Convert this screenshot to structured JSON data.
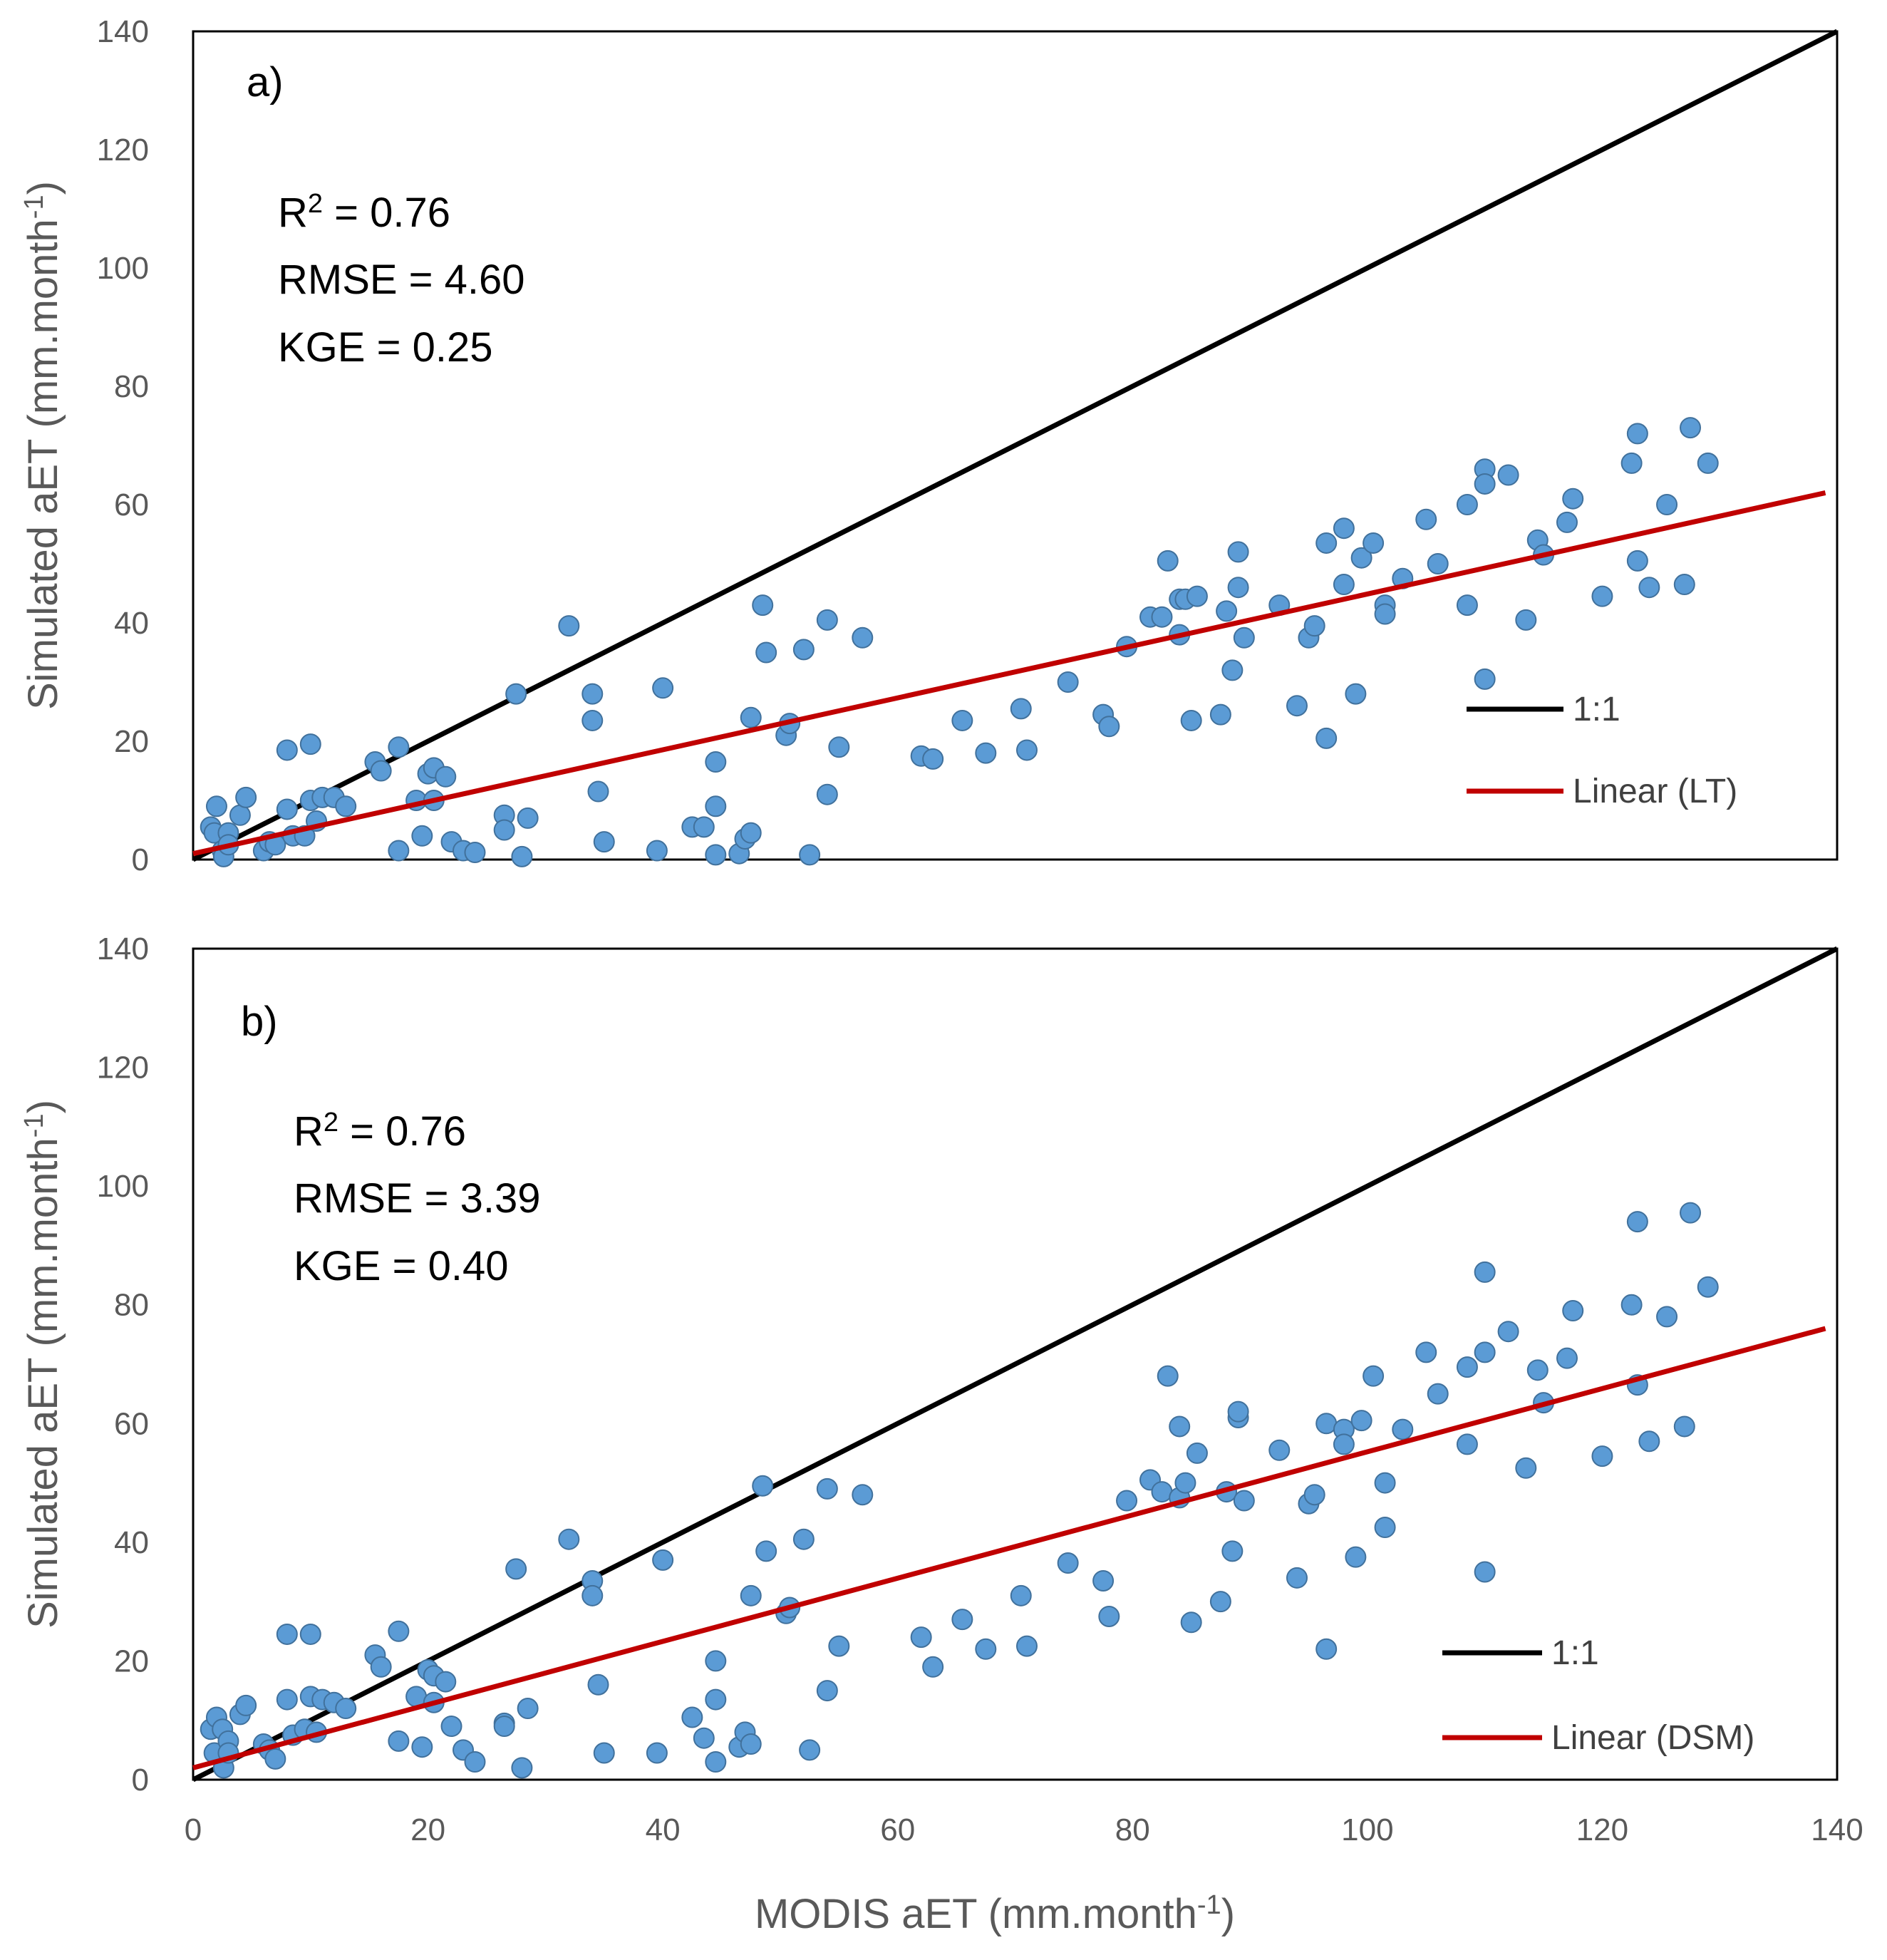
{
  "colors": {
    "point_fill": "#5B9BD5",
    "point_stroke": "#41719C",
    "one_to_one": "#000000",
    "trend": "#C00000",
    "tick_text": "#595959",
    "frame": "#000000"
  },
  "x_axis": {
    "label_main": "MODIS aET (mm.month",
    "label_sup": "-1",
    "label_end": ")",
    "ticks": [
      "0",
      "20",
      "40",
      "60",
      "80",
      "100",
      "120",
      "140"
    ]
  },
  "chart_data": [
    {
      "type": "scatter",
      "panel_label": "a)",
      "stats": {
        "r2_prefix": "R",
        "r2_sup": "2",
        "r2_value": " = 0.76",
        "rmse": "RMSE = 4.60",
        "kge": "KGE = 0.25"
      },
      "xlabel": "MODIS aET (mm.month-1)",
      "ylabel_main": "Simulated aET (mm.month",
      "ylabel_sup": "-1",
      "ylabel_end": ")",
      "xlim": [
        0,
        140
      ],
      "ylim": [
        0,
        140
      ],
      "y_ticks": [
        "0",
        "20",
        "40",
        "60",
        "80",
        "100",
        "120",
        "140"
      ],
      "legend": [
        {
          "label": "1:1",
          "kind": "one_to_one"
        },
        {
          "label": "Linear (LT)",
          "kind": "trend"
        }
      ],
      "one_to_one": {
        "x": [
          0,
          140
        ],
        "y": [
          0,
          140
        ]
      },
      "trend": {
        "x": [
          0,
          139
        ],
        "y": [
          1,
          62
        ]
      },
      "points": [
        [
          1.5,
          5.5
        ],
        [
          1.8,
          4.5
        ],
        [
          2,
          9
        ],
        [
          2.5,
          1.5
        ],
        [
          2.6,
          0.5
        ],
        [
          3,
          4.5
        ],
        [
          3,
          2.5
        ],
        [
          4,
          7.5
        ],
        [
          4.5,
          10.5
        ],
        [
          6,
          1.5
        ],
        [
          6.5,
          3
        ],
        [
          7,
          2.5
        ],
        [
          8,
          18.5
        ],
        [
          8,
          8.5
        ],
        [
          8.5,
          4
        ],
        [
          9.5,
          4
        ],
        [
          10,
          10
        ],
        [
          10,
          19.5
        ],
        [
          10.5,
          6.5
        ],
        [
          11,
          10.5
        ],
        [
          12,
          10.5
        ],
        [
          13,
          9
        ],
        [
          15.5,
          16.5
        ],
        [
          16,
          15
        ],
        [
          17.5,
          19
        ],
        [
          17.5,
          1.5
        ],
        [
          19,
          10
        ],
        [
          19.5,
          4
        ],
        [
          20,
          14.5
        ],
        [
          20.5,
          15.5
        ],
        [
          20.5,
          10
        ],
        [
          21.5,
          14
        ],
        [
          22,
          3
        ],
        [
          23,
          1.5
        ],
        [
          24,
          1.2
        ],
        [
          26.5,
          7.5
        ],
        [
          26.5,
          5
        ],
        [
          27.5,
          28
        ],
        [
          28,
          0.5
        ],
        [
          28.5,
          7
        ],
        [
          32,
          39.5
        ],
        [
          34,
          28
        ],
        [
          34,
          23.5
        ],
        [
          34.5,
          11.5
        ],
        [
          35,
          3
        ],
        [
          39.5,
          1.5
        ],
        [
          40,
          29
        ],
        [
          42.5,
          5.5
        ],
        [
          43.5,
          5.5
        ],
        [
          44.5,
          9
        ],
        [
          44.5,
          16.5
        ],
        [
          44.5,
          0.8
        ],
        [
          46.5,
          1
        ],
        [
          47,
          3.5
        ],
        [
          47.5,
          4.5
        ],
        [
          47.5,
          24
        ],
        [
          48.5,
          43
        ],
        [
          48.8,
          35
        ],
        [
          50.5,
          21
        ],
        [
          50.8,
          23
        ],
        [
          52,
          35.5
        ],
        [
          52.5,
          0.8
        ],
        [
          54,
          40.5
        ],
        [
          54,
          11
        ],
        [
          55,
          19
        ],
        [
          57,
          37.5
        ],
        [
          62,
          17.5
        ],
        [
          63,
          17
        ],
        [
          65.5,
          23.5
        ],
        [
          67.5,
          18
        ],
        [
          70.5,
          25.5
        ],
        [
          71,
          18.5
        ],
        [
          74.5,
          30
        ],
        [
          77.5,
          24.5
        ],
        [
          78,
          22.5
        ],
        [
          79.5,
          36
        ],
        [
          81.5,
          41
        ],
        [
          82.5,
          41
        ],
        [
          83,
          50.5
        ],
        [
          84,
          44
        ],
        [
          84,
          38
        ],
        [
          84.5,
          44
        ],
        [
          85,
          23.5
        ],
        [
          85.5,
          44.5
        ],
        [
          87.5,
          24.5
        ],
        [
          88,
          42
        ],
        [
          88.5,
          32
        ],
        [
          89,
          46
        ],
        [
          89,
          52
        ],
        [
          89.5,
          37.5
        ],
        [
          92.5,
          43
        ],
        [
          94,
          26
        ],
        [
          95,
          37.5
        ],
        [
          95.5,
          39.5
        ],
        [
          96.5,
          53.5
        ],
        [
          96.5,
          20.5
        ],
        [
          98,
          56
        ],
        [
          98,
          46.5
        ],
        [
          99,
          28
        ],
        [
          99.5,
          51
        ],
        [
          100.5,
          53.5
        ],
        [
          101.5,
          43
        ],
        [
          101.5,
          41.5
        ],
        [
          103,
          47.5
        ],
        [
          105,
          57.5
        ],
        [
          106,
          50
        ],
        [
          108.5,
          60
        ],
        [
          108.5,
          43
        ],
        [
          110,
          66
        ],
        [
          110,
          63.5
        ],
        [
          110,
          30.5
        ],
        [
          112,
          65
        ],
        [
          113.5,
          40.5
        ],
        [
          114.5,
          54
        ],
        [
          115,
          51.5
        ],
        [
          117,
          57
        ],
        [
          117.5,
          61
        ],
        [
          120,
          44.5
        ],
        [
          122.5,
          67
        ],
        [
          123,
          72
        ],
        [
          123,
          50.5
        ],
        [
          124,
          46
        ],
        [
          125.5,
          60
        ],
        [
          127,
          46.5
        ],
        [
          127.5,
          73
        ],
        [
          129,
          67
        ]
      ]
    },
    {
      "type": "scatter",
      "panel_label": "b)",
      "stats": {
        "r2_prefix": "R",
        "r2_sup": "2",
        "r2_value": " = 0.76",
        "rmse": "RMSE = 3.39",
        "kge": "KGE = 0.40"
      },
      "xlabel": "MODIS aET (mm.month-1)",
      "ylabel_main": "Simulated aET (mm.month",
      "ylabel_sup": "-1",
      "ylabel_end": ")",
      "xlim": [
        0,
        140
      ],
      "ylim": [
        0,
        140
      ],
      "y_ticks": [
        "0",
        "20",
        "40",
        "60",
        "80",
        "100",
        "120",
        "140"
      ],
      "legend": [
        {
          "label": "1:1",
          "kind": "one_to_one"
        },
        {
          "label": "Linear (DSM)",
          "kind": "trend"
        }
      ],
      "one_to_one": {
        "x": [
          0,
          140
        ],
        "y": [
          0,
          140
        ]
      },
      "trend": {
        "x": [
          0,
          139
        ],
        "y": [
          2,
          76
        ]
      },
      "points": [
        [
          1.5,
          8.5
        ],
        [
          1.8,
          4.5
        ],
        [
          2,
          10.5
        ],
        [
          2.5,
          8.5
        ],
        [
          2.6,
          2
        ],
        [
          3,
          6.5
        ],
        [
          3,
          4.5
        ],
        [
          4,
          11
        ],
        [
          4.5,
          12.5
        ],
        [
          6,
          6
        ],
        [
          6.5,
          5
        ],
        [
          7,
          3.5
        ],
        [
          8,
          24.5
        ],
        [
          8,
          13.5
        ],
        [
          8.5,
          7.5
        ],
        [
          9.5,
          8.5
        ],
        [
          10,
          14
        ],
        [
          10,
          24.5
        ],
        [
          10.5,
          8
        ],
        [
          11,
          13.5
        ],
        [
          12,
          13
        ],
        [
          13,
          12
        ],
        [
          15.5,
          21
        ],
        [
          16,
          19
        ],
        [
          17.5,
          25
        ],
        [
          17.5,
          6.5
        ],
        [
          19,
          14
        ],
        [
          19.5,
          5.5
        ],
        [
          20,
          18.5
        ],
        [
          20.5,
          17.5
        ],
        [
          20.5,
          13
        ],
        [
          21.5,
          16.5
        ],
        [
          22,
          9
        ],
        [
          23,
          5
        ],
        [
          24,
          3
        ],
        [
          26.5,
          9.5
        ],
        [
          26.5,
          9
        ],
        [
          27.5,
          35.5
        ],
        [
          28,
          2
        ],
        [
          28.5,
          12
        ],
        [
          32,
          40.5
        ],
        [
          34,
          33.5
        ],
        [
          34,
          31
        ],
        [
          34.5,
          16
        ],
        [
          35,
          4.5
        ],
        [
          39.5,
          4.5
        ],
        [
          40,
          37
        ],
        [
          42.5,
          10.5
        ],
        [
          43.5,
          7
        ],
        [
          44.5,
          13.5
        ],
        [
          44.5,
          20
        ],
        [
          44.5,
          3
        ],
        [
          46.5,
          5.5
        ],
        [
          47,
          8
        ],
        [
          47.5,
          6
        ],
        [
          47.5,
          31
        ],
        [
          48.5,
          49.5
        ],
        [
          48.8,
          38.5
        ],
        [
          50.5,
          28
        ],
        [
          50.8,
          29
        ],
        [
          52,
          40.5
        ],
        [
          52.5,
          5
        ],
        [
          54,
          49
        ],
        [
          54,
          15
        ],
        [
          55,
          22.5
        ],
        [
          57,
          48
        ],
        [
          62,
          24
        ],
        [
          63,
          19
        ],
        [
          65.5,
          27
        ],
        [
          67.5,
          22
        ],
        [
          70.5,
          31
        ],
        [
          71,
          22.5
        ],
        [
          74.5,
          36.5
        ],
        [
          77.5,
          33.5
        ],
        [
          78,
          27.5
        ],
        [
          79.5,
          47
        ],
        [
          81.5,
          50.5
        ],
        [
          82.5,
          48.5
        ],
        [
          83,
          68
        ],
        [
          84,
          59.5
        ],
        [
          84,
          47.5
        ],
        [
          84.5,
          50
        ],
        [
          85,
          26.5
        ],
        [
          85.5,
          55
        ],
        [
          87.5,
          30
        ],
        [
          88,
          48.5
        ],
        [
          88.5,
          38.5
        ],
        [
          89,
          61
        ],
        [
          89,
          62
        ],
        [
          89.5,
          47
        ],
        [
          92.5,
          55.5
        ],
        [
          94,
          34
        ],
        [
          95,
          46.5
        ],
        [
          95.5,
          48
        ],
        [
          96.5,
          60
        ],
        [
          96.5,
          22
        ],
        [
          98,
          59
        ],
        [
          98,
          56.5
        ],
        [
          99,
          37.5
        ],
        [
          99.5,
          60.5
        ],
        [
          100.5,
          68
        ],
        [
          101.5,
          42.5
        ],
        [
          101.5,
          50
        ],
        [
          103,
          59
        ],
        [
          105,
          72
        ],
        [
          106,
          65
        ],
        [
          108.5,
          69.5
        ],
        [
          108.5,
          56.5
        ],
        [
          110,
          85.5
        ],
        [
          110,
          72
        ],
        [
          110,
          35
        ],
        [
          112,
          75.5
        ],
        [
          113.5,
          52.5
        ],
        [
          114.5,
          69
        ],
        [
          115,
          63.5
        ],
        [
          117,
          71
        ],
        [
          117.5,
          79
        ],
        [
          120,
          54.5
        ],
        [
          122.5,
          80
        ],
        [
          123,
          94
        ],
        [
          123,
          66.5
        ],
        [
          124,
          57
        ],
        [
          125.5,
          78
        ],
        [
          127,
          59.5
        ],
        [
          127.5,
          95.5
        ],
        [
          129,
          83
        ]
      ]
    }
  ]
}
